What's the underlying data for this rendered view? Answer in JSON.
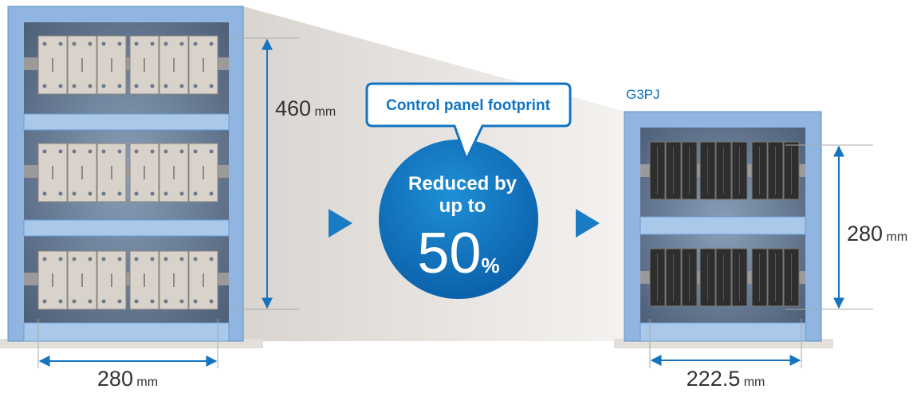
{
  "left_panel": {
    "height": {
      "value": 460,
      "unit": "mm"
    },
    "width": {
      "value": 280,
      "unit": "mm"
    }
  },
  "callout": {
    "label": "Control panel footprint",
    "line1": "Reduced by",
    "line2": "up to",
    "value": 50,
    "unit": "%"
  },
  "right_panel": {
    "name": "G3PJ",
    "height": {
      "value": 280,
      "unit": "mm"
    },
    "width": {
      "value": 222.5,
      "unit": "mm"
    }
  }
}
